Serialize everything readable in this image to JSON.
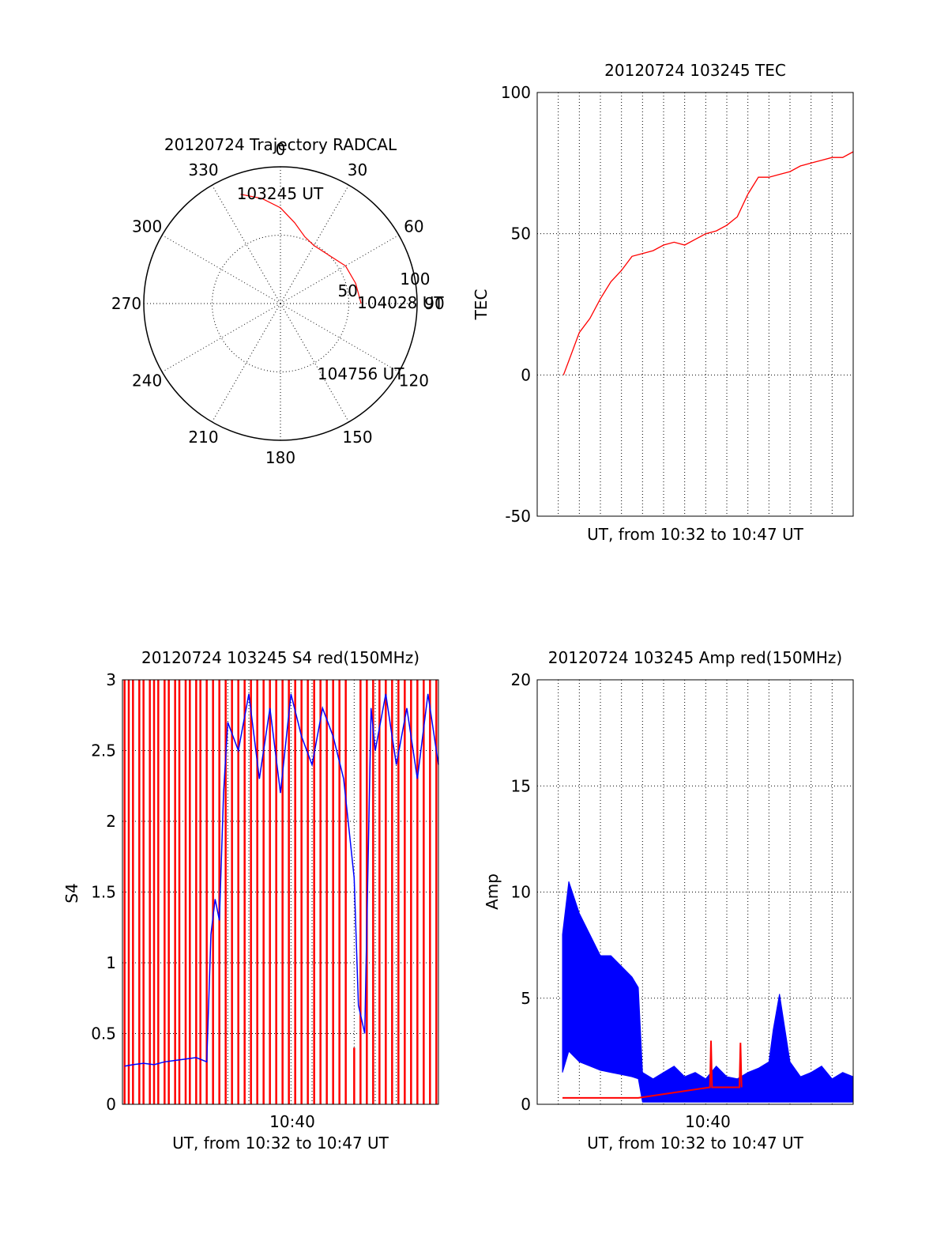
{
  "chart_data": [
    {
      "type": "polar",
      "title": "20120724 Trajectory RADCAL",
      "azimuth_labels": [
        "0",
        "30",
        "60",
        "90",
        "120",
        "150",
        "180",
        "210",
        "240",
        "270",
        "300",
        "330"
      ],
      "radius_labels": [
        "50",
        "100"
      ],
      "rlim": [
        0,
        100
      ],
      "grid": true,
      "series": [
        {
          "color": "#ff0000",
          "points": [
            [
              -20,
              85
            ],
            [
              -10,
              78
            ],
            [
              0,
              70
            ],
            [
              10,
              60
            ],
            [
              20,
              52
            ],
            [
              30,
              49
            ],
            [
              45,
              50
            ],
            [
              60,
              55
            ],
            [
              75,
              57
            ],
            [
              90,
              59
            ]
          ],
          "points_azimuth_deg_elevation_note": ""
        }
      ],
      "annotations": [
        {
          "text": "103245 UT",
          "az": -20,
          "r": 85
        },
        {
          "text": "104028 UT",
          "az": 90,
          "r": 59
        },
        {
          "text": "104756 UT",
          "az": 150,
          "r": 60
        }
      ]
    },
    {
      "type": "line",
      "title": "20120724 103245 TEC",
      "xlabel": "UT, from 10:32 to 10:47 UT",
      "ylabel": "TEC",
      "xlim": [
        0,
        15
      ],
      "ylim": [
        -50,
        100
      ],
      "yticks": [
        -50,
        0,
        50,
        100
      ],
      "grid": true,
      "series": [
        {
          "color": "#ff0000",
          "x": [
            1.25,
            1.5,
            2,
            2.5,
            3,
            3.5,
            4,
            4.5,
            5,
            5.5,
            6,
            6.5,
            7,
            7.5,
            8,
            8.5,
            9,
            9.5,
            10,
            10.5,
            11,
            11.5,
            12,
            12.5,
            13,
            13.5,
            14,
            14.5,
            15
          ],
          "y": [
            0,
            5,
            15,
            20,
            27,
            33,
            37,
            42,
            43,
            44,
            46,
            47,
            46,
            48,
            50,
            51,
            53,
            56,
            64,
            70,
            70,
            71,
            72,
            74,
            75,
            76,
            77,
            77,
            79
          ]
        }
      ]
    },
    {
      "type": "line",
      "title": "20120724 103245 S4 red(150MHz)",
      "xlabel": "UT, from 10:32 to 10:47 UT",
      "ylabel": "S4",
      "xlim": [
        0,
        15
      ],
      "ylim": [
        0,
        3
      ],
      "xticks": [
        "10:40"
      ],
      "yticks": [
        "0",
        "0.5",
        "1",
        "1.5",
        "2",
        "2.5",
        "3"
      ],
      "grid": true,
      "series": [
        {
          "color": "#0000ff",
          "x": [
            0.1,
            0.5,
            1,
            1.5,
            2,
            2.5,
            3,
            3.5,
            4,
            4.2,
            4.4,
            4.6,
            4.8,
            5,
            5.5,
            6,
            6.5,
            7,
            7.5,
            8,
            8.5,
            9,
            9.5,
            10,
            10.5,
            11,
            11.2,
            11.5,
            11.8,
            12,
            12.5,
            13,
            13.5,
            14,
            14.5,
            15
          ],
          "y": [
            0.27,
            0.28,
            0.29,
            0.28,
            0.3,
            0.31,
            0.32,
            0.33,
            0.3,
            1.2,
            1.45,
            1.3,
            2.2,
            2.7,
            2.5,
            2.9,
            2.3,
            2.8,
            2.2,
            2.9,
            2.6,
            2.4,
            2.8,
            2.6,
            2.3,
            1.6,
            0.7,
            0.5,
            2.8,
            2.5,
            2.9,
            2.4,
            2.8,
            2.3,
            2.9,
            2.4
          ]
        },
        {
          "color": "#ff0000",
          "style": "vertical-spikes",
          "x": [
            0.1,
            0.3,
            0.5,
            0.8,
            1.0,
            1.3,
            1.5,
            1.7,
            2.0,
            2.2,
            2.5,
            2.7,
            3.0,
            3.2,
            3.5,
            3.7,
            4.0,
            4.3,
            4.6,
            4.9,
            5.2,
            5.5,
            5.8,
            6.1,
            6.4,
            6.7,
            7.0,
            7.3,
            7.6,
            7.9,
            8.2,
            8.5,
            8.8,
            9.1,
            9.4,
            9.7,
            10.0,
            10.3,
            10.6,
            11.0,
            11.3,
            11.6,
            11.9,
            12.2,
            12.5,
            12.8,
            13.1,
            13.4,
            13.7,
            14.0,
            14.3,
            14.6,
            14.9
          ],
          "y": [
            3,
            3,
            3,
            3,
            3,
            3,
            3,
            3,
            3,
            3,
            3,
            3,
            3,
            3,
            3,
            3,
            3,
            3,
            3,
            3,
            3,
            3,
            3,
            3,
            3,
            3,
            3,
            3,
            3,
            3,
            3,
            3,
            3,
            3,
            3,
            3,
            3,
            3,
            3,
            0.4,
            3,
            3,
            3,
            3,
            3,
            3,
            3,
            3,
            3,
            3,
            3,
            3,
            3
          ]
        }
      ]
    },
    {
      "type": "line",
      "title": "20120724 103245 Amp red(150MHz)",
      "xlabel": "UT, from 10:32 to 10:47 UT",
      "ylabel": "Amp",
      "xlim": [
        0,
        15
      ],
      "ylim": [
        0,
        20
      ],
      "xticks": [
        "10:40"
      ],
      "yticks": [
        "0",
        "5",
        "10",
        "15",
        "20"
      ],
      "grid": true,
      "series": [
        {
          "color": "#0000ff",
          "x": [
            1.2,
            1.5,
            2,
            2.5,
            3,
            3.5,
            4,
            4.5,
            4.8,
            5,
            5.5,
            6,
            6.5,
            7,
            7.5,
            8,
            8.5,
            9,
            9.5,
            10,
            10.5,
            11,
            11.2,
            11.5,
            12,
            12.5,
            13,
            13.5,
            14,
            14.5,
            15
          ],
          "y_min": [
            1.5,
            2.5,
            2.0,
            1.8,
            1.6,
            1.5,
            1.4,
            1.3,
            1.2,
            0.1,
            0.1,
            0.1,
            0.1,
            0.1,
            0.1,
            0.1,
            0.1,
            0.1,
            0.1,
            0.1,
            0.1,
            0.1,
            0.1,
            0.1,
            0.1,
            0.1,
            0.1,
            0.1,
            0.1,
            0.1,
            0.1
          ],
          "y_max": [
            8,
            10.5,
            9,
            8,
            7,
            7,
            6.5,
            6,
            5.5,
            1.5,
            1.2,
            1.5,
            1.8,
            1.3,
            1.5,
            1.2,
            1.8,
            1.3,
            1.2,
            1.5,
            1.7,
            2.0,
            3.5,
            5.2,
            2.0,
            1.3,
            1.5,
            1.8,
            1.2,
            1.5,
            1.3
          ]
        },
        {
          "color": "#ff0000",
          "x": [
            1.2,
            2,
            3,
            4,
            4.8,
            8.2,
            8.25,
            8.3,
            9.6,
            9.65,
            9.7
          ],
          "y": [
            0.3,
            0.3,
            0.3,
            0.3,
            0.3,
            0.8,
            3.0,
            0.8,
            0.8,
            2.9,
            0.8
          ]
        }
      ]
    }
  ]
}
